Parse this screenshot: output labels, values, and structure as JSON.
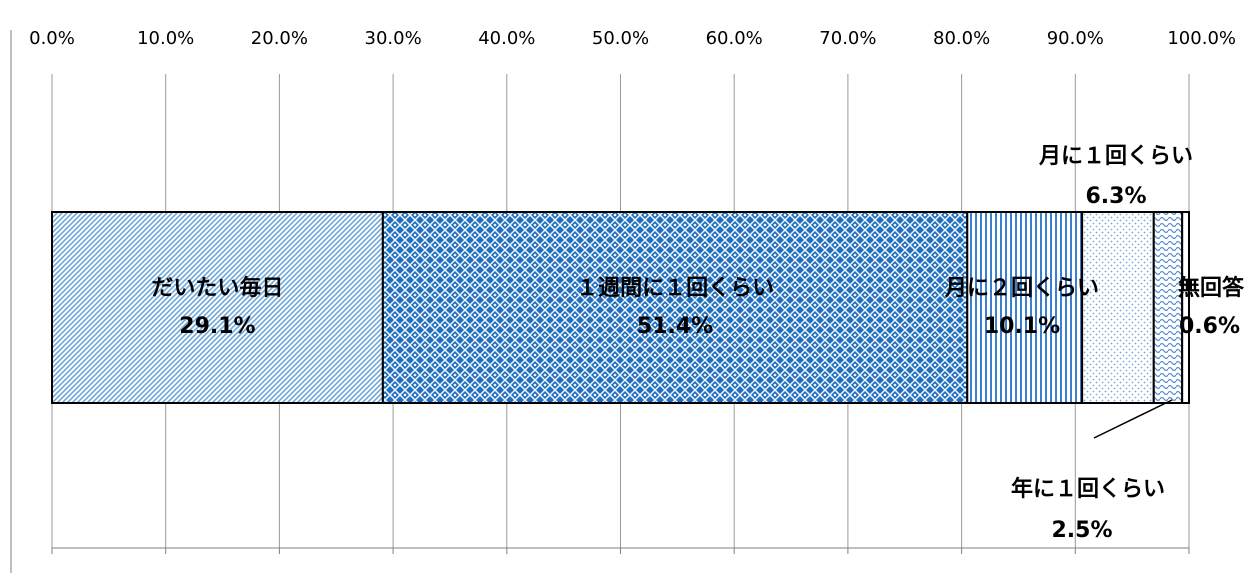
{
  "chart_data": {
    "type": "bar",
    "orientation": "horizontal-stacked",
    "xlim": [
      0,
      100
    ],
    "x_ticks": [
      "0.0%",
      "10.0%",
      "20.0%",
      "30.0%",
      "40.0%",
      "50.0%",
      "60.0%",
      "70.0%",
      "80.0%",
      "90.0%",
      "100.0%"
    ],
    "grid": true,
    "legend": "none",
    "segments": [
      {
        "label": "だいたい毎日",
        "value": 29.1,
        "value_label": "29.1%",
        "pattern": "diag-fine",
        "color": "#6fa8dc"
      },
      {
        "label": "１週間に１回くらい",
        "value": 51.4,
        "value_label": "51.4%",
        "pattern": "lattice",
        "color": "#1f6fc2"
      },
      {
        "label": "月に２回くらい",
        "value": 10.1,
        "value_label": "10.1%",
        "pattern": "vertical",
        "color": "#3a7fd0"
      },
      {
        "label": "月に１回くらい",
        "value": 6.3,
        "value_label": "6.3%",
        "pattern": "dots",
        "color": "#7fa9da"
      },
      {
        "label": "年に１回くらい",
        "value": 2.5,
        "value_label": "2.5%",
        "pattern": "waves",
        "color": "#5b8fcf"
      },
      {
        "label": "無回答",
        "value": 0.6,
        "value_label": "0.6%",
        "pattern": "solid",
        "color": "#ffffff"
      }
    ]
  }
}
